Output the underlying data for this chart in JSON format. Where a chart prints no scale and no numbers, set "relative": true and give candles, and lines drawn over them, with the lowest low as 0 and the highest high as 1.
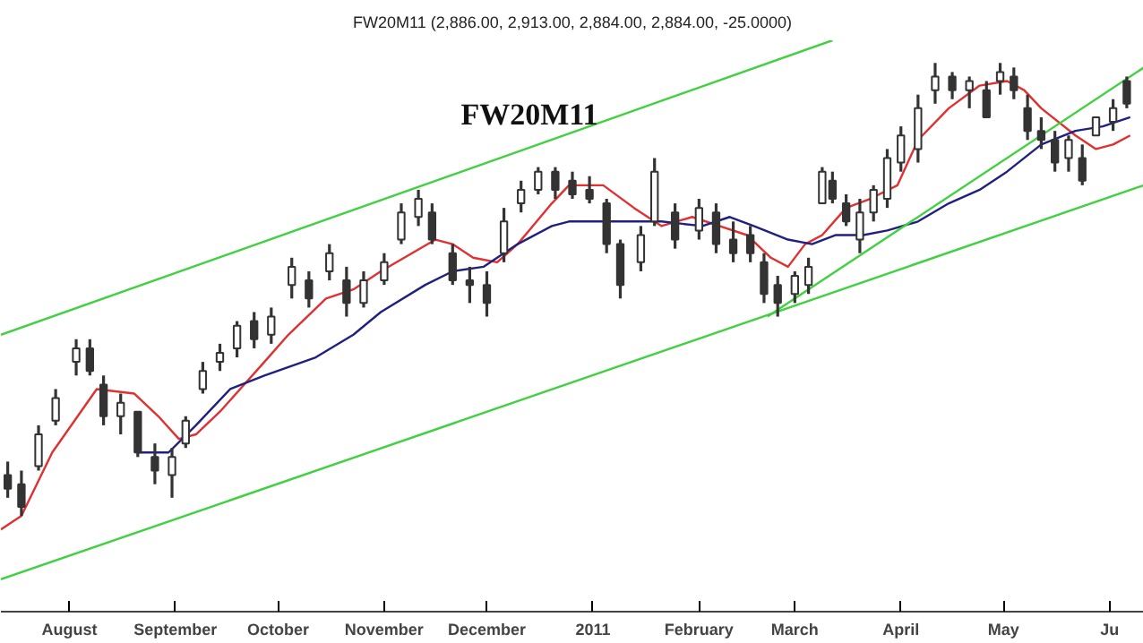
{
  "chart_data": {
    "type": "candlestick",
    "relative": true,
    "subtitle": "FW20M11 (2,886.00, 2,913.00, 2,884.00, 2,884.00, -25.0000)",
    "title": "FW20M11",
    "color": "#333333",
    "x": [
      "2010-07-14",
      "2010-07-18",
      "2010-07-23",
      "2010-07-28",
      "2010-08-03",
      "2010-08-07",
      "2010-08-11",
      "2010-08-16",
      "2010-08-21",
      "2010-08-26",
      "2010-08-31",
      "2010-09-04",
      "2010-09-09",
      "2010-09-14",
      "2010-09-19",
      "2010-09-24",
      "2010-09-29",
      "2010-10-05",
      "2010-10-10",
      "2010-10-16",
      "2010-10-21",
      "2010-10-26",
      "2010-11-01",
      "2010-11-06",
      "2010-11-11",
      "2010-11-15",
      "2010-11-21",
      "2010-11-26",
      "2010-12-01",
      "2010-12-06",
      "2010-12-11",
      "2010-12-16",
      "2010-12-21",
      "2010-12-26",
      "2010-12-31",
      "2011-01-05",
      "2011-01-09",
      "2011-01-15",
      "2011-01-19",
      "2011-01-25",
      "2011-02-01",
      "2011-02-06",
      "2011-02-11",
      "2011-02-16",
      "2011-02-20",
      "2011-02-24",
      "2011-03-01",
      "2011-03-05",
      "2011-03-09",
      "2011-03-12",
      "2011-03-16",
      "2011-03-20",
      "2011-03-24",
      "2011-03-28",
      "2011-04-01",
      "2011-04-06",
      "2011-04-11",
      "2011-04-16",
      "2011-04-21",
      "2011-04-26",
      "2011-04-30",
      "2011-05-04",
      "2011-05-08",
      "2011-05-12",
      "2011-05-16",
      "2011-05-20",
      "2011-05-24",
      "2011-05-28",
      "2011-06-02",
      "2011-06-06"
    ],
    "ohlc": [
      [
        0.09,
        0.12,
        0.04,
        0.06
      ],
      [
        0.07,
        0.1,
        0.0,
        0.02
      ],
      [
        0.11,
        0.2,
        0.1,
        0.18
      ],
      [
        0.21,
        0.28,
        0.2,
        0.26
      ],
      [
        0.34,
        0.39,
        0.31,
        0.37
      ],
      [
        0.37,
        0.39,
        0.31,
        0.32
      ],
      [
        0.29,
        0.31,
        0.2,
        0.22
      ],
      [
        0.22,
        0.27,
        0.18,
        0.25
      ],
      [
        0.23,
        0.23,
        0.13,
        0.14
      ],
      [
        0.13,
        0.16,
        0.07,
        0.1
      ],
      [
        0.09,
        0.15,
        0.04,
        0.13
      ],
      [
        0.16,
        0.22,
        0.15,
        0.21
      ],
      [
        0.28,
        0.34,
        0.27,
        0.32
      ],
      [
        0.34,
        0.38,
        0.32,
        0.36
      ],
      [
        0.37,
        0.43,
        0.35,
        0.42
      ],
      [
        0.43,
        0.45,
        0.37,
        0.39
      ],
      [
        0.4,
        0.46,
        0.38,
        0.44
      ],
      [
        0.51,
        0.57,
        0.48,
        0.55
      ],
      [
        0.52,
        0.54,
        0.46,
        0.48
      ],
      [
        0.54,
        0.6,
        0.52,
        0.58
      ],
      [
        0.52,
        0.55,
        0.44,
        0.47
      ],
      [
        0.47,
        0.54,
        0.46,
        0.52
      ],
      [
        0.52,
        0.58,
        0.51,
        0.56
      ],
      [
        0.61,
        0.69,
        0.6,
        0.67
      ],
      [
        0.66,
        0.72,
        0.64,
        0.7
      ],
      [
        0.67,
        0.69,
        0.6,
        0.61
      ],
      [
        0.58,
        0.6,
        0.51,
        0.52
      ],
      [
        0.52,
        0.55,
        0.47,
        0.51
      ],
      [
        0.51,
        0.54,
        0.44,
        0.47
      ],
      [
        0.58,
        0.68,
        0.56,
        0.65
      ],
      [
        0.69,
        0.74,
        0.67,
        0.72
      ],
      [
        0.72,
        0.77,
        0.71,
        0.76
      ],
      [
        0.76,
        0.77,
        0.7,
        0.72
      ],
      [
        0.74,
        0.76,
        0.7,
        0.71
      ],
      [
        0.72,
        0.75,
        0.69,
        0.7
      ],
      [
        0.69,
        0.7,
        0.58,
        0.6
      ],
      [
        0.6,
        0.61,
        0.48,
        0.51
      ],
      [
        0.56,
        0.64,
        0.54,
        0.62
      ],
      [
        0.65,
        0.79,
        0.64,
        0.76
      ],
      [
        0.67,
        0.69,
        0.59,
        0.61
      ],
      [
        0.63,
        0.7,
        0.61,
        0.68
      ],
      [
        0.67,
        0.69,
        0.58,
        0.6
      ],
      [
        0.61,
        0.65,
        0.56,
        0.58
      ],
      [
        0.62,
        0.64,
        0.56,
        0.58
      ],
      [
        0.56,
        0.58,
        0.47,
        0.49
      ],
      [
        0.51,
        0.53,
        0.44,
        0.47
      ],
      [
        0.49,
        0.54,
        0.47,
        0.53
      ],
      [
        0.51,
        0.57,
        0.49,
        0.55
      ],
      [
        0.69,
        0.77,
        0.69,
        0.76
      ],
      [
        0.74,
        0.76,
        0.69,
        0.7
      ],
      [
        0.69,
        0.71,
        0.64,
        0.65
      ],
      [
        0.61,
        0.7,
        0.58,
        0.67
      ],
      [
        0.67,
        0.73,
        0.65,
        0.72
      ],
      [
        0.7,
        0.81,
        0.68,
        0.79
      ],
      [
        0.78,
        0.86,
        0.76,
        0.84
      ],
      [
        0.81,
        0.93,
        0.78,
        0.9
      ],
      [
        0.94,
        1.0,
        0.91,
        0.97
      ],
      [
        0.97,
        0.98,
        0.92,
        0.94
      ],
      [
        0.94,
        0.97,
        0.9,
        0.96
      ],
      [
        0.94,
        0.96,
        0.88,
        0.88
      ],
      [
        0.96,
        1.0,
        0.93,
        0.98
      ],
      [
        0.97,
        0.99,
        0.92,
        0.94
      ],
      [
        0.9,
        0.93,
        0.83,
        0.85
      ],
      [
        0.85,
        0.88,
        0.81,
        0.83
      ],
      [
        0.83,
        0.85,
        0.76,
        0.78
      ],
      [
        0.79,
        0.84,
        0.76,
        0.83
      ],
      [
        0.79,
        0.82,
        0.73,
        0.74
      ],
      [
        0.84,
        0.88,
        0.84,
        0.88
      ],
      [
        0.87,
        0.92,
        0.85,
        0.9
      ],
      [
        0.96,
        0.97,
        0.9,
        0.91
      ]
    ],
    "series": [
      {
        "type": "line",
        "color": "#e03030",
        "x": [
          "2010-07-12",
          "2010-07-18",
          "2010-07-27",
          "2010-08-09",
          "2010-08-20",
          "2010-08-27",
          "2010-09-02",
          "2010-09-07",
          "2010-09-14",
          "2010-09-27",
          "2010-10-04",
          "2010-10-15",
          "2010-10-23",
          "2010-10-31",
          "2010-11-16",
          "2010-11-21",
          "2010-11-27",
          "2010-12-04",
          "2010-12-10",
          "2010-12-20",
          "2010-12-25",
          "2011-01-04",
          "2011-01-13",
          "2011-01-21",
          "2011-01-30",
          "2011-02-07",
          "2011-02-15",
          "2011-02-22",
          "2011-02-27",
          "2011-03-04",
          "2011-03-09",
          "2011-03-16",
          "2011-03-23",
          "2011-03-31",
          "2011-04-06",
          "2011-04-15",
          "2011-04-24",
          "2011-05-02",
          "2011-05-07",
          "2011-05-12",
          "2011-05-22",
          "2011-05-28",
          "2011-06-02",
          "2011-06-07"
        ],
        "values": [
          -0.03,
          0.0,
          0.14,
          0.28,
          0.27,
          0.22,
          0.17,
          0.18,
          0.23,
          0.34,
          0.4,
          0.48,
          0.5,
          0.54,
          0.61,
          0.6,
          0.57,
          0.56,
          0.6,
          0.69,
          0.73,
          0.73,
          0.68,
          0.64,
          0.66,
          0.64,
          0.62,
          0.57,
          0.55,
          0.6,
          0.62,
          0.68,
          0.7,
          0.73,
          0.83,
          0.9,
          0.95,
          0.96,
          0.94,
          0.9,
          0.84,
          0.81,
          0.82,
          0.84
        ]
      },
      {
        "type": "line",
        "color": "#202080",
        "x": [
          "2010-08-21",
          "2010-08-30",
          "2010-09-07",
          "2010-09-17",
          "2010-09-27",
          "2010-10-12",
          "2010-10-23",
          "2010-10-31",
          "2010-11-13",
          "2010-11-21",
          "2010-11-30",
          "2010-12-10",
          "2010-12-20",
          "2010-12-25",
          "2011-01-06",
          "2011-01-21",
          "2011-02-02",
          "2011-02-10",
          "2011-02-17",
          "2011-02-27",
          "2011-03-06",
          "2011-03-13",
          "2011-03-21",
          "2011-03-28",
          "2011-04-06",
          "2011-04-15",
          "2011-04-24",
          "2011-05-02",
          "2011-05-12",
          "2011-05-22",
          "2011-05-30",
          "2011-06-07"
        ],
        "values": [
          0.14,
          0.14,
          0.2,
          0.28,
          0.31,
          0.35,
          0.4,
          0.45,
          0.51,
          0.54,
          0.55,
          0.6,
          0.64,
          0.65,
          0.65,
          0.65,
          0.64,
          0.66,
          0.64,
          0.61,
          0.6,
          0.62,
          0.62,
          0.63,
          0.65,
          0.69,
          0.72,
          0.76,
          0.82,
          0.85,
          0.86,
          0.88
        ]
      },
      {
        "type": "line",
        "color": "#40d040",
        "x": [
          "2010-07-12",
          "2011-03-12"
        ],
        "values": [
          0.4,
          1.05
        ]
      },
      {
        "type": "line",
        "color": "#40d040",
        "x": [
          "2010-07-12",
          "2011-06-11"
        ],
        "values": [
          -0.14,
          0.73
        ]
      },
      {
        "type": "line",
        "color": "#40d040",
        "x": [
          "2011-02-21",
          "2011-06-11"
        ],
        "values": [
          0.44,
          0.99
        ]
      }
    ],
    "xlim": [
      "2010-07-12",
      "2011-06-11"
    ],
    "xticks": [
      {
        "value": "2010-08-01",
        "label": "August"
      },
      {
        "value": "2010-09-01",
        "label": "September"
      },
      {
        "value": "2010-10-01",
        "label": "October"
      },
      {
        "value": "2010-11-01",
        "label": "November"
      },
      {
        "value": "2010-12-01",
        "label": "December"
      },
      {
        "value": "2011-01-01",
        "label": "2011"
      },
      {
        "value": "2011-02-01",
        "label": "February"
      },
      {
        "value": "2011-03-01",
        "label": "March"
      },
      {
        "value": "2011-04-01",
        "label": "April"
      },
      {
        "value": "2011-05-01",
        "label": "May"
      },
      {
        "value": "2011-06-01",
        "label": "Ju"
      }
    ],
    "tick_labels": "x"
  }
}
